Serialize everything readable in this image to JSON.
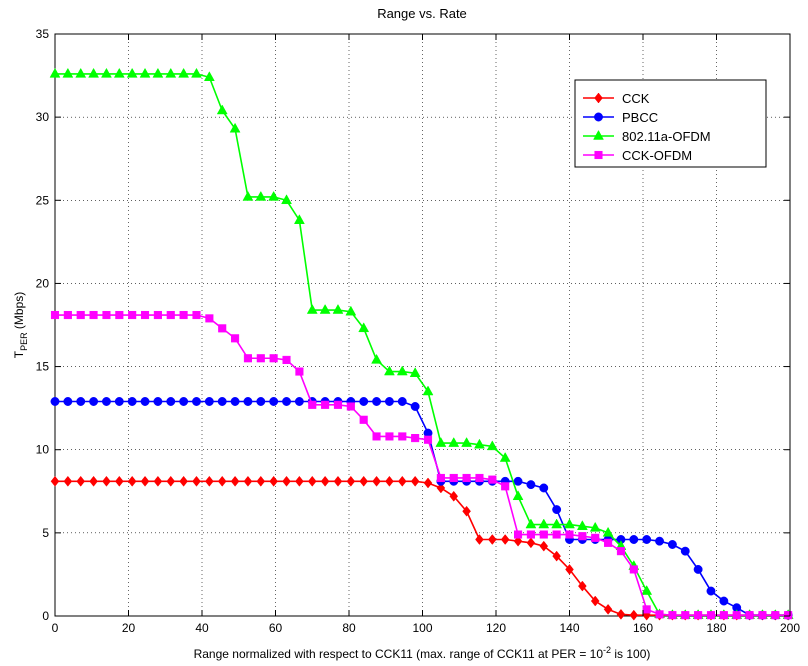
{
  "chart_data": {
    "type": "line",
    "title": "Range vs. Rate",
    "xlabel": "Range normalized with respect to CCK11 (max. range of CCK11 at PER = 10^-2 is 100)",
    "xlabel_main": "Range normalized with respect to CCK11 (max. range of CCK11 at PER = 10",
    "xlabel_exp": "-2",
    "xlabel_tail": " is 100)",
    "ylabel_main": "T",
    "ylabel_sub": "PER",
    "ylabel_tail": " (Mbps)",
    "xlim": [
      0,
      200
    ],
    "ylim": [
      0,
      35
    ],
    "xticks": [
      0,
      20,
      40,
      60,
      80,
      100,
      120,
      140,
      160,
      180,
      200
    ],
    "yticks": [
      0,
      5,
      10,
      15,
      20,
      25,
      30,
      35
    ],
    "grid": true,
    "legend_position": "top-right",
    "series": [
      {
        "name": "CCK",
        "color": "#ff0000",
        "marker": "diamond",
        "x": [
          0,
          3.5,
          7,
          10.5,
          14,
          17.5,
          21,
          24.5,
          28,
          31.5,
          35,
          38.5,
          42,
          45.5,
          49,
          52.5,
          56,
          59.5,
          63,
          66.5,
          70,
          73.5,
          77,
          80.5,
          84,
          87.5,
          91,
          94.5,
          98,
          101.5,
          105,
          108.5,
          112,
          115.5,
          119,
          122.5,
          126,
          129.5,
          133,
          136.5,
          140,
          143.5,
          147,
          150.5,
          154,
          157.5,
          161,
          164.5,
          168,
          171.5,
          175,
          178.5,
          182,
          185.5,
          189,
          192.5,
          196,
          199.5
        ],
        "y": [
          8.1,
          8.1,
          8.1,
          8.1,
          8.1,
          8.1,
          8.1,
          8.1,
          8.1,
          8.1,
          8.1,
          8.1,
          8.1,
          8.1,
          8.1,
          8.1,
          8.1,
          8.1,
          8.1,
          8.1,
          8.1,
          8.1,
          8.1,
          8.1,
          8.1,
          8.1,
          8.1,
          8.1,
          8.1,
          8.0,
          7.7,
          7.2,
          6.3,
          4.6,
          4.6,
          4.6,
          4.5,
          4.4,
          4.2,
          3.6,
          2.8,
          1.8,
          0.9,
          0.4,
          0.1,
          0.05,
          0.05,
          0.05,
          0.05,
          0.05,
          0.05,
          0.05,
          0.05,
          0.05,
          0.05,
          0.05,
          0.05,
          0.05
        ]
      },
      {
        "name": "PBCC",
        "color": "#0000ff",
        "marker": "circle",
        "x": [
          0,
          3.5,
          7,
          10.5,
          14,
          17.5,
          21,
          24.5,
          28,
          31.5,
          35,
          38.5,
          42,
          45.5,
          49,
          52.5,
          56,
          59.5,
          63,
          66.5,
          70,
          73.5,
          77,
          80.5,
          84,
          87.5,
          91,
          94.5,
          98,
          101.5,
          105,
          108.5,
          112,
          115.5,
          119,
          122.5,
          126,
          129.5,
          133,
          136.5,
          140,
          143.5,
          147,
          150.5,
          154,
          157.5,
          161,
          164.5,
          168,
          171.5,
          175,
          178.5,
          182,
          185.5,
          189,
          192.5,
          196,
          199.5
        ],
        "y": [
          12.9,
          12.9,
          12.9,
          12.9,
          12.9,
          12.9,
          12.9,
          12.9,
          12.9,
          12.9,
          12.9,
          12.9,
          12.9,
          12.9,
          12.9,
          12.9,
          12.9,
          12.9,
          12.9,
          12.9,
          12.9,
          12.9,
          12.9,
          12.9,
          12.9,
          12.9,
          12.9,
          12.9,
          12.6,
          11.0,
          8.1,
          8.1,
          8.1,
          8.1,
          8.1,
          8.1,
          8.1,
          7.9,
          7.7,
          6.4,
          4.6,
          4.6,
          4.6,
          4.6,
          4.6,
          4.6,
          4.6,
          4.5,
          4.3,
          3.9,
          2.8,
          1.5,
          0.9,
          0.5,
          0.05,
          0.05,
          0.05,
          0.05
        ]
      },
      {
        "name": "802.11a-OFDM",
        "color": "#00ff00",
        "marker": "triangle",
        "x": [
          0,
          3.5,
          7,
          10.5,
          14,
          17.5,
          21,
          24.5,
          28,
          31.5,
          35,
          38.5,
          42,
          45.5,
          49,
          52.5,
          56,
          59.5,
          63,
          66.5,
          70,
          73.5,
          77,
          80.5,
          84,
          87.5,
          91,
          94.5,
          98,
          101.5,
          105,
          108.5,
          112,
          115.5,
          119,
          122.5,
          126,
          129.5,
          133,
          136.5,
          140,
          143.5,
          147,
          150.5,
          154,
          157.5,
          161,
          164.5,
          168,
          171.5,
          175,
          178.5,
          182,
          185.5,
          189,
          192.5,
          196,
          199.5
        ],
        "y": [
          32.6,
          32.6,
          32.6,
          32.6,
          32.6,
          32.6,
          32.6,
          32.6,
          32.6,
          32.6,
          32.6,
          32.6,
          32.4,
          30.4,
          29.3,
          25.2,
          25.2,
          25.2,
          25.0,
          23.8,
          18.4,
          18.4,
          18.4,
          18.3,
          17.3,
          15.4,
          14.7,
          14.7,
          14.6,
          13.5,
          10.4,
          10.4,
          10.4,
          10.3,
          10.2,
          9.5,
          7.2,
          5.5,
          5.5,
          5.5,
          5.5,
          5.4,
          5.3,
          5.0,
          4.2,
          3.0,
          1.5,
          0.1,
          0.05,
          0.05,
          0.05,
          0.05,
          0.05,
          0.05,
          0.05,
          0.05,
          0.05,
          0.05
        ]
      },
      {
        "name": "CCK-OFDM",
        "color": "#ff00ff",
        "marker": "square",
        "x": [
          0,
          3.5,
          7,
          10.5,
          14,
          17.5,
          21,
          24.5,
          28,
          31.5,
          35,
          38.5,
          42,
          45.5,
          49,
          52.5,
          56,
          59.5,
          63,
          66.5,
          70,
          73.5,
          77,
          80.5,
          84,
          87.5,
          91,
          94.5,
          98,
          101.5,
          105,
          108.5,
          112,
          115.5,
          119,
          122.5,
          126,
          129.5,
          133,
          136.5,
          140,
          143.5,
          147,
          150.5,
          154,
          157.5,
          161,
          164.5,
          168,
          171.5,
          175,
          178.5,
          182,
          185.5,
          189,
          192.5,
          196,
          199.5
        ],
        "y": [
          18.1,
          18.1,
          18.1,
          18.1,
          18.1,
          18.1,
          18.1,
          18.1,
          18.1,
          18.1,
          18.1,
          18.1,
          17.9,
          17.3,
          16.7,
          15.5,
          15.5,
          15.5,
          15.4,
          14.7,
          12.7,
          12.7,
          12.7,
          12.6,
          11.8,
          10.8,
          10.8,
          10.8,
          10.7,
          10.6,
          8.3,
          8.3,
          8.3,
          8.3,
          8.2,
          7.8,
          4.9,
          4.9,
          4.9,
          4.9,
          4.9,
          4.8,
          4.7,
          4.4,
          3.9,
          2.8,
          0.4,
          0.1,
          0.05,
          0.05,
          0.05,
          0.05,
          0.05,
          0.05,
          0.05,
          0.05,
          0.05,
          0.05
        ]
      }
    ]
  }
}
